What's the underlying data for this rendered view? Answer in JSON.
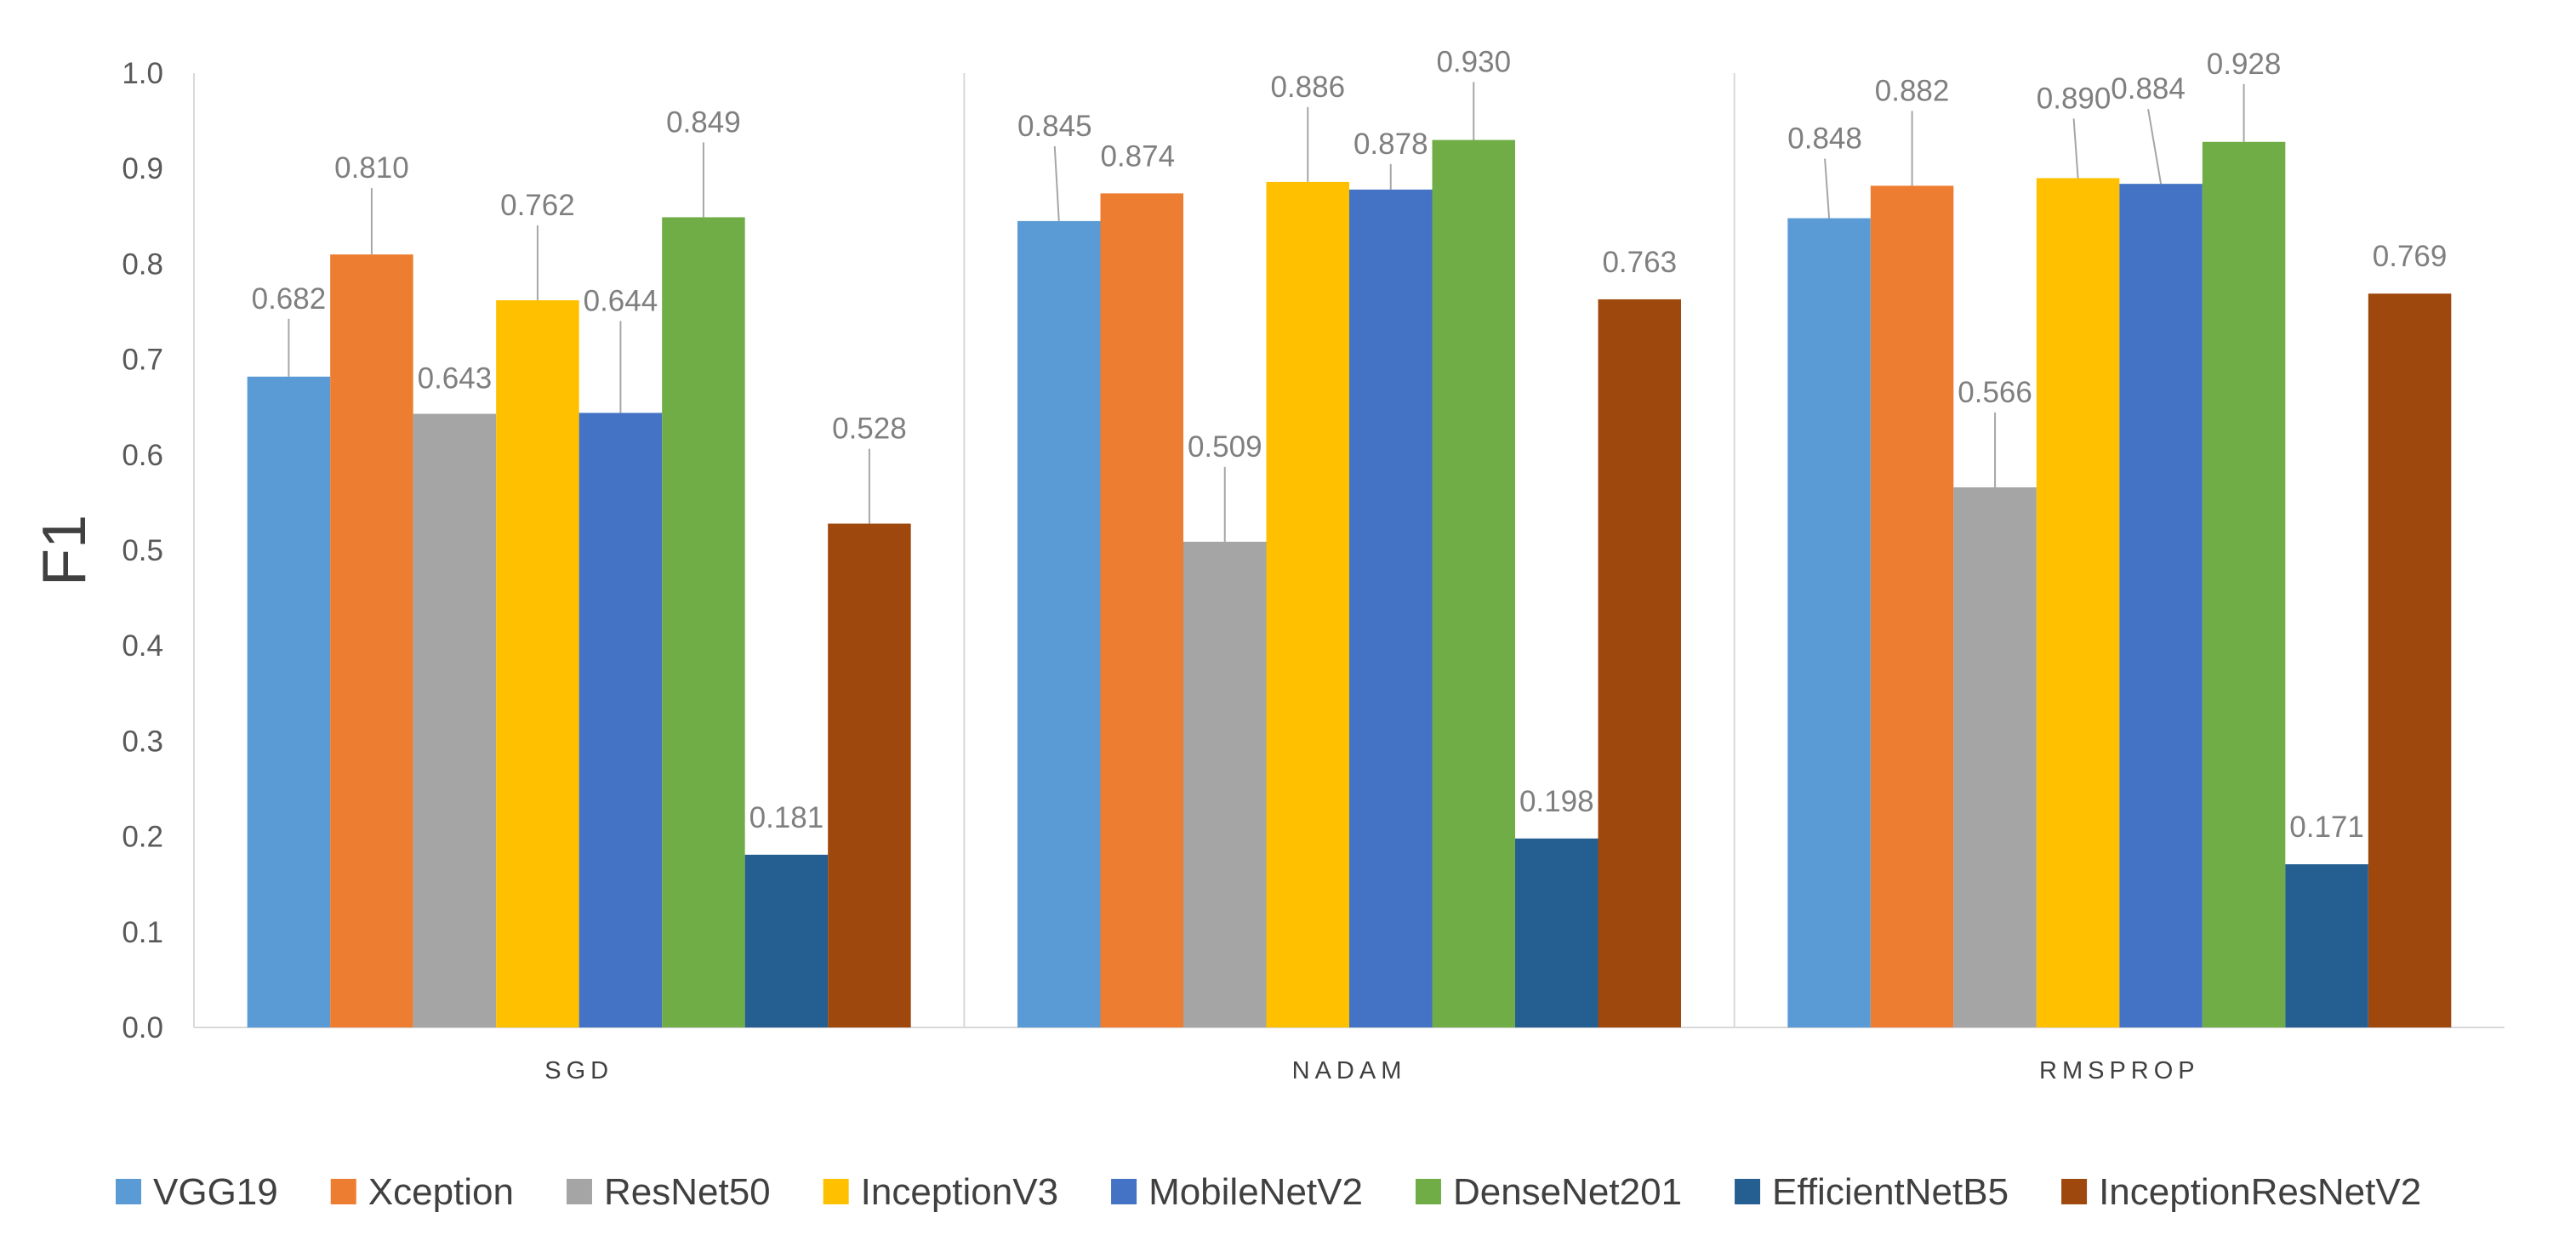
{
  "chart_data": {
    "type": "bar",
    "title": "",
    "xlabel": "",
    "ylabel": "F1",
    "ylim": [
      0,
      1.0
    ],
    "yticks": [
      "0.0",
      "0.1",
      "0.2",
      "0.3",
      "0.4",
      "0.5",
      "0.6",
      "0.7",
      "0.8",
      "0.9",
      "1.0"
    ],
    "categories": [
      "SGD",
      "NADAM",
      "RMSPROP"
    ],
    "grid": false,
    "legend_position": "bottom",
    "series": [
      {
        "name": "VGG19",
        "color": "#5B9BD5",
        "values": [
          0.682,
          0.845,
          0.848
        ],
        "labels": [
          "0.682",
          "0.845",
          "0.848"
        ]
      },
      {
        "name": "Xception",
        "color": "#ED7D31",
        "values": [
          0.81,
          0.874,
          0.882
        ],
        "labels": [
          "0.810",
          "0.874",
          "0.882"
        ]
      },
      {
        "name": "ResNet50",
        "color": "#A5A5A5",
        "values": [
          0.643,
          0.509,
          0.566
        ],
        "labels": [
          "0.643",
          "0.509",
          "0.566"
        ]
      },
      {
        "name": "InceptionV3",
        "color": "#FFC000",
        "values": [
          0.762,
          0.886,
          0.89
        ],
        "labels": [
          "0.762",
          "0.886",
          "0.890"
        ]
      },
      {
        "name": "MobileNetV2",
        "color": "#4472C4",
        "values": [
          0.644,
          0.878,
          0.884
        ],
        "labels": [
          "0.644",
          "0.878",
          "0.884"
        ]
      },
      {
        "name": "DenseNet201",
        "color": "#70AD47",
        "values": [
          0.849,
          0.93,
          0.928
        ],
        "labels": [
          "0.849",
          "0.930",
          "0.928"
        ]
      },
      {
        "name": "EfficientNetB5",
        "color": "#255E91",
        "values": [
          0.181,
          0.198,
          0.171
        ],
        "labels": [
          "0.181",
          "0.198",
          "0.171"
        ]
      },
      {
        "name": "InceptionResNetV2",
        "color": "#9E480E",
        "values": [
          0.528,
          0.763,
          0.769
        ],
        "labels": [
          "0.528",
          "0.763",
          "0.769"
        ]
      }
    ]
  }
}
